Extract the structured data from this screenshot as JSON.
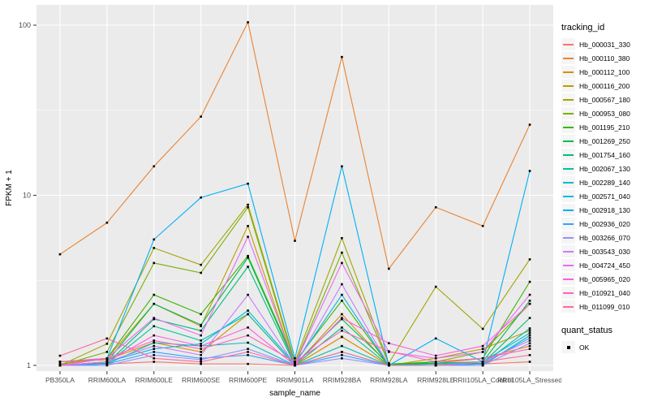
{
  "chart_data": {
    "type": "line",
    "title": "",
    "xlabel": "sample_name",
    "ylabel": "FPKM + 1",
    "y_scale": "log10",
    "y_ticks": [
      1,
      10,
      100
    ],
    "y_tick_labels": [
      "1",
      "10",
      "100"
    ],
    "y_minor_ticks": [
      3.1623,
      31.623
    ],
    "ylim_log": [
      -0.03,
      2.12
    ],
    "grid": true,
    "legend_position": "right",
    "legend_title": "tracking_id",
    "point_style": "small-black-square",
    "categories": [
      "PB350LA",
      "RRIM600LA",
      "RRIM600LE",
      "RRIM600SE",
      "RRIM600PE",
      "RRIM901LA",
      "RRIM928BA",
      "RRIM928LA",
      "RRIM928LE",
      "RRII105LA_Control",
      "RRII105LA_Stressed"
    ],
    "series": [
      {
        "name": "Hb_000031_330",
        "color": "#F8766D",
        "values": [
          1.0,
          1.02,
          1.05,
          1.02,
          1.02,
          1.0,
          1.47,
          1.0,
          1.0,
          1.02,
          1.05
        ]
      },
      {
        "name": "Hb_000110_380",
        "color": "#EA8331",
        "values": [
          4.5,
          6.9,
          14.8,
          29,
          104,
          5.4,
          65,
          3.7,
          8.5,
          6.6,
          26
        ]
      },
      {
        "name": "Hb_000112_100",
        "color": "#D89000",
        "values": [
          1.05,
          1.08,
          1.36,
          1.2,
          2.0,
          1.0,
          1.47,
          1.0,
          1.03,
          1.1,
          1.3
        ]
      },
      {
        "name": "Hb_000116_200",
        "color": "#C09B00",
        "values": [
          1.02,
          1.1,
          2.3,
          1.7,
          6.6,
          1.0,
          2.0,
          1.0,
          1.1,
          1.25,
          1.6
        ]
      },
      {
        "name": "Hb_000567_180",
        "color": "#A3A500",
        "values": [
          1.0,
          1.34,
          4.9,
          3.9,
          8.8,
          1.05,
          5.6,
          1.03,
          2.9,
          1.64,
          4.2
        ]
      },
      {
        "name": "Hb_000953_080",
        "color": "#7CAE00",
        "values": [
          1.0,
          1.2,
          4.0,
          3.5,
          8.5,
          1.02,
          4.6,
          1.02,
          1.05,
          1.2,
          2.3
        ]
      },
      {
        "name": "Hb_001195_210",
        "color": "#39B600",
        "values": [
          1.0,
          1.1,
          2.6,
          2.0,
          4.4,
          1.05,
          2.4,
          1.0,
          1.05,
          1.1,
          3.1
        ]
      },
      {
        "name": "Hb_001269_250",
        "color": "#00BB4E",
        "values": [
          1.0,
          1.05,
          2.3,
          1.73,
          4.3,
          1.02,
          1.87,
          1.02,
          1.03,
          1.05,
          2.4
        ]
      },
      {
        "name": "Hb_001754_160",
        "color": "#00BF7D",
        "values": [
          1.0,
          1.03,
          1.87,
          1.6,
          3.8,
          1.0,
          1.67,
          1.0,
          1.02,
          1.03,
          1.9
        ]
      },
      {
        "name": "Hb_002067_130",
        "color": "#00C1A3",
        "values": [
          1.0,
          1.02,
          1.7,
          1.4,
          2.0,
          1.0,
          1.3,
          1.0,
          1.0,
          1.02,
          1.65
        ]
      },
      {
        "name": "Hb_002289_140",
        "color": "#00BFC4",
        "values": [
          1.0,
          1.02,
          1.36,
          1.3,
          1.36,
          1.0,
          1.2,
          1.0,
          1.0,
          1.0,
          1.5
        ]
      },
      {
        "name": "Hb_002571_040",
        "color": "#00BAE0",
        "values": [
          1.0,
          1.05,
          1.25,
          1.34,
          2.1,
          1.02,
          2.6,
          1.0,
          1.02,
          1.05,
          1.55
        ]
      },
      {
        "name": "Hb_002918_130",
        "color": "#00B0F6",
        "values": [
          1.05,
          1.1,
          5.5,
          9.7,
          11.7,
          1.1,
          14.8,
          1.0,
          1.44,
          1.05,
          13.9
        ]
      },
      {
        "name": "Hb_002936_020",
        "color": "#35A2FF",
        "values": [
          1.0,
          1.02,
          1.2,
          1.1,
          1.15,
          1.0,
          1.15,
          1.0,
          1.0,
          1.02,
          1.45
        ]
      },
      {
        "name": "Hb_003266_070",
        "color": "#9590FF",
        "values": [
          1.0,
          1.0,
          1.15,
          1.08,
          1.25,
          1.0,
          1.1,
          1.0,
          1.0,
          1.0,
          1.35
        ]
      },
      {
        "name": "Hb_003543_030",
        "color": "#C77CFF",
        "values": [
          1.0,
          1.05,
          1.3,
          1.15,
          2.6,
          1.0,
          3.0,
          1.0,
          1.0,
          1.05,
          1.4
        ]
      },
      {
        "name": "Hb_004724_450",
        "color": "#E76BF3",
        "values": [
          1.0,
          1.1,
          1.9,
          1.5,
          5.7,
          1.02,
          4.0,
          1.2,
          1.1,
          1.2,
          2.6
        ]
      },
      {
        "name": "Hb_005965_020",
        "color": "#FA62DB",
        "values": [
          1.0,
          1.05,
          1.5,
          1.3,
          1.67,
          1.0,
          1.9,
          1.35,
          1.14,
          1.3,
          2.3
        ]
      },
      {
        "name": "Hb_010921_040",
        "color": "#FF62BC",
        "values": [
          1.05,
          1.1,
          1.4,
          1.25,
          1.5,
          1.05,
          1.6,
          1.21,
          1.05,
          1.1,
          1.25
        ]
      },
      {
        "name": "Hb_011099_010",
        "color": "#FF6A98",
        "values": [
          1.14,
          1.44,
          1.1,
          1.05,
          1.2,
          1.0,
          1.2,
          1.0,
          1.0,
          1.05,
          1.15
        ]
      }
    ],
    "quant_legend": {
      "title": "quant_status",
      "items": [
        "OK"
      ]
    }
  },
  "colors": {
    "panel_bg": "#EBEBEB",
    "grid": "#FFFFFF",
    "tick_text": "#4D4D4D",
    "axis_title": "#000000",
    "tick_mark": "#333333",
    "point": "#000000",
    "legend_key_bg": "#F5F5F5"
  }
}
